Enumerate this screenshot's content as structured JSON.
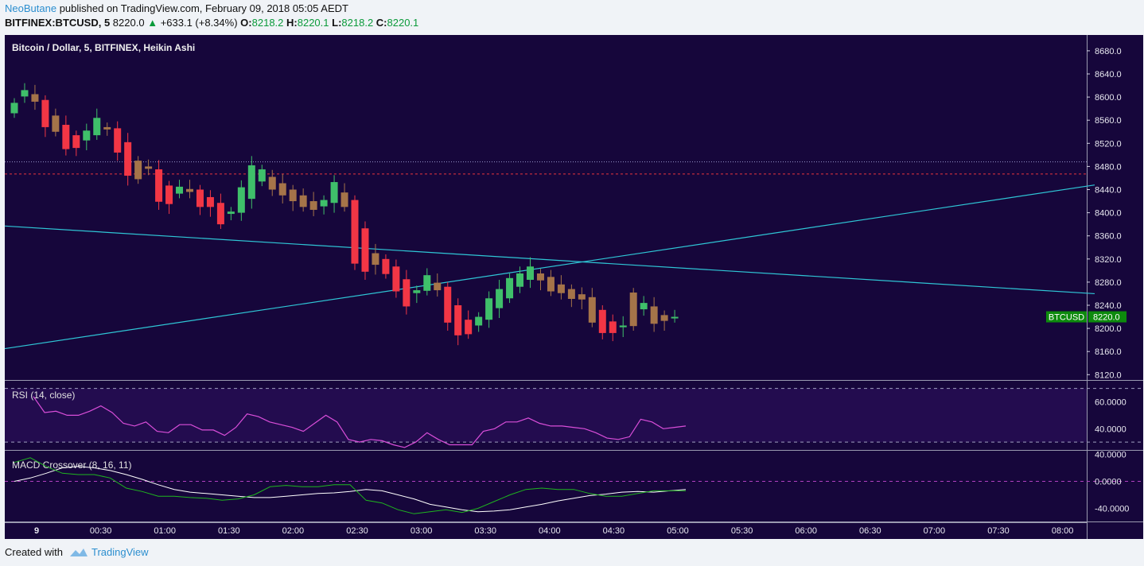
{
  "header": {
    "author": "NeoButane",
    "published": "published on TradingView.com, February 09, 2018 05:05 AEDT",
    "symbol": "BITFINEX:BTCUSD, 5",
    "last": "8220.0",
    "up_arrow": "▲",
    "change": "+633.1 (+8.34%)",
    "o_label": "O:",
    "o_value": "8218.2",
    "h_label": "H:",
    "h_value": "8220.1",
    "l_label": "L:",
    "l_value": "8218.2",
    "c_label": "C:",
    "c_value": "8220.1"
  },
  "footer": {
    "created_with": "Created with",
    "brand": "TradingView"
  },
  "colors": {
    "background": "#16063b",
    "rsi_band": "#230c4f",
    "up": "#3fbf6a",
    "down": "#f23645",
    "neutral": "#a57449",
    "trendline": "#2fc6d6",
    "resistance": "#e8353d",
    "rsi_line": "#d94ed9",
    "macd_line": "#ffffff",
    "signal_line": "#1fb51f",
    "price_tag": "#0d8a0d"
  },
  "chart_data": [
    {
      "type": "candlestick",
      "title": "Bitcoin / Dollar, 5, BITFINEX, Heikin Ashi",
      "ylim": [
        8100,
        8700
      ],
      "yticks": [
        "8680.0",
        "8640.0",
        "8600.0",
        "8560.0",
        "8520.0",
        "8480.0",
        "8440.0",
        "8400.0",
        "8360.0",
        "8320.0",
        "8280.0",
        "8240.0",
        "8200.0",
        "8160.0",
        "8120.0"
      ],
      "xticks": [
        "9",
        "00:30",
        "01:00",
        "01:30",
        "02:00",
        "02:30",
        "03:00",
        "03:30",
        "04:00",
        "04:30",
        "05:00",
        "05:30",
        "06:00",
        "06:30",
        "07:00",
        "07:30",
        "08:00"
      ],
      "price_tag": {
        "label": "BTCUSD",
        "value": "8220.0"
      },
      "horizontal_lines": [
        {
          "value": 8467,
          "style": "dashed",
          "color": "#e8353d"
        },
        {
          "value": 8488,
          "style": "dotted",
          "color": "#9999cc"
        }
      ],
      "trendlines": [
        {
          "from": [
            0,
            8377
          ],
          "to": [
            1370,
            8260
          ]
        },
        {
          "from": [
            0,
            8165
          ],
          "to": [
            1370,
            8448
          ]
        }
      ],
      "candles": [
        [
          8590,
          8625,
          8572,
          8572,
          "up"
        ],
        [
          8601,
          8612,
          8598,
          8612,
          "up"
        ],
        [
          8605,
          8612,
          8590,
          8592,
          "neutral"
        ],
        [
          8595,
          8595,
          8548,
          8548,
          "down"
        ],
        [
          8568,
          8570,
          8540,
          8540,
          "neutral"
        ],
        [
          8552,
          8552,
          8510,
          8510,
          "down"
        ],
        [
          8534,
          8534,
          8512,
          8512,
          "down"
        ],
        [
          8525,
          8542,
          8525,
          8542,
          "up"
        ],
        [
          8534,
          8564,
          8534,
          8564,
          "up"
        ],
        [
          8548,
          8548,
          8544,
          8544,
          "neutral"
        ],
        [
          8546,
          8546,
          8504,
          8504,
          "down"
        ],
        [
          8522,
          8522,
          8464,
          8464,
          "down"
        ],
        [
          8490,
          8494,
          8458,
          8458,
          "neutral"
        ],
        [
          8480,
          8480,
          8476,
          8476,
          "neutral"
        ],
        [
          8475,
          8475,
          8419,
          8419,
          "down"
        ],
        [
          8447,
          8447,
          8415,
          8415,
          "down"
        ],
        [
          8433,
          8445,
          8433,
          8445,
          "up"
        ],
        [
          8441,
          8441,
          8436,
          8436,
          "neutral"
        ],
        [
          8440,
          8440,
          8410,
          8410,
          "down"
        ],
        [
          8427,
          8427,
          8410,
          8410,
          "down"
        ],
        [
          8417,
          8417,
          8380,
          8380,
          "down"
        ],
        [
          8398,
          8402,
          8398,
          8402,
          "up"
        ],
        [
          8400,
          8444,
          8400,
          8444,
          "up"
        ],
        [
          8424,
          8482,
          8424,
          8482,
          "up"
        ],
        [
          8454,
          8475,
          8454,
          8475,
          "up"
        ],
        [
          8462,
          8462,
          8440,
          8440,
          "neutral"
        ],
        [
          8451,
          8451,
          8430,
          8430,
          "neutral"
        ],
        [
          8440,
          8440,
          8420,
          8420,
          "neutral"
        ],
        [
          8430,
          8430,
          8410,
          8410,
          "neutral"
        ],
        [
          8420,
          8420,
          8405,
          8405,
          "neutral"
        ],
        [
          8411,
          8422,
          8411,
          8422,
          "up"
        ],
        [
          8417,
          8453,
          8417,
          8453,
          "up"
        ],
        [
          8435,
          8435,
          8410,
          8410,
          "neutral"
        ],
        [
          8422,
          8422,
          8312,
          8312,
          "down"
        ],
        [
          8373,
          8373,
          8298,
          8298,
          "down"
        ],
        [
          8330,
          8330,
          8310,
          8310,
          "neutral"
        ],
        [
          8320,
          8320,
          8294,
          8294,
          "down"
        ],
        [
          8307,
          8307,
          8264,
          8264,
          "down"
        ],
        [
          8285,
          8285,
          8238,
          8238,
          "down"
        ],
        [
          8261,
          8266,
          8261,
          8266,
          "up"
        ],
        [
          8265,
          8292,
          8265,
          8292,
          "up"
        ],
        [
          8279,
          8279,
          8266,
          8266,
          "neutral"
        ],
        [
          8272,
          8272,
          8210,
          8210,
          "down"
        ],
        [
          8240,
          8240,
          8188,
          8188,
          "down"
        ],
        [
          8215,
          8215,
          8190,
          8190,
          "down"
        ],
        [
          8205,
          8220,
          8205,
          8220,
          "up"
        ],
        [
          8215,
          8252,
          8215,
          8252,
          "up"
        ],
        [
          8235,
          8268,
          8235,
          8268,
          "up"
        ],
        [
          8252,
          8287,
          8252,
          8287,
          "up"
        ],
        [
          8272,
          8295,
          8272,
          8295,
          "up"
        ],
        [
          8284,
          8307,
          8284,
          8307,
          "up"
        ],
        [
          8295,
          8295,
          8283,
          8283,
          "neutral"
        ],
        [
          8289,
          8289,
          8264,
          8264,
          "neutral"
        ],
        [
          8276,
          8276,
          8261,
          8261,
          "neutral"
        ],
        [
          8268,
          8268,
          8251,
          8251,
          "neutral"
        ],
        [
          8259,
          8259,
          8250,
          8250,
          "neutral"
        ],
        [
          8254,
          8254,
          8210,
          8210,
          "neutral"
        ],
        [
          8232,
          8232,
          8192,
          8192,
          "down"
        ],
        [
          8212,
          8212,
          8192,
          8192,
          "down"
        ],
        [
          8202,
          8205,
          8202,
          8205,
          "up"
        ],
        [
          8204,
          8262,
          8204,
          8262,
          "neutral"
        ],
        [
          8233,
          8244,
          8233,
          8244,
          "up"
        ],
        [
          8238,
          8238,
          8208,
          8208,
          "neutral"
        ],
        [
          8223,
          8223,
          8213,
          8213,
          "neutral"
        ],
        [
          8218,
          8220,
          8218,
          8220,
          "up"
        ]
      ]
    },
    {
      "type": "line",
      "title": "RSI (14, close)",
      "ylim": [
        25,
        72
      ],
      "yticks": [
        "60.0000",
        "40.0000"
      ],
      "bands": [
        70,
        30
      ],
      "series": [
        {
          "values": [
            64,
            52,
            53,
            50,
            50,
            53,
            57,
            52,
            44,
            42,
            45,
            38,
            37,
            43,
            43,
            39,
            39,
            35,
            41,
            51,
            49,
            45,
            43,
            41,
            38,
            44,
            50,
            45,
            32,
            30,
            32,
            31,
            28,
            26,
            30,
            37,
            32,
            28,
            28,
            28,
            38,
            40,
            45,
            45,
            48,
            44,
            42,
            42,
            41,
            40,
            37,
            33,
            32,
            34,
            47,
            45,
            40,
            41,
            42
          ]
        }
      ]
    },
    {
      "type": "line",
      "title": "MACD Crossover (8, 16, 11)",
      "ylim": [
        -60,
        45
      ],
      "yticks": [
        "40.0000",
        "0.0000",
        "-40.0000"
      ],
      "series": [
        {
          "color": "#ffffff",
          "values": [
            0,
            5,
            12,
            20,
            22,
            20,
            16,
            10,
            3,
            -5,
            -12,
            -16,
            -18,
            -20,
            -22,
            -24,
            -24,
            -22,
            -20,
            -18,
            -17,
            -15,
            -12,
            -14,
            -20,
            -26,
            -34,
            -38,
            -42,
            -45,
            -44,
            -42,
            -38,
            -34,
            -29,
            -25,
            -21,
            -19,
            -16,
            -15,
            -16,
            -14,
            -12
          ]
        },
        {
          "color": "#1fb51f",
          "values": [
            28,
            35,
            22,
            12,
            10,
            10,
            5,
            -10,
            -15,
            -22,
            -22,
            -24,
            -25,
            -28,
            -26,
            -20,
            -8,
            -6,
            -8,
            -8,
            -5,
            -5,
            -28,
            -32,
            -42,
            -48,
            -45,
            -42,
            -46,
            -40,
            -30,
            -20,
            -12,
            -10,
            -12,
            -12,
            -18,
            -22,
            -22,
            -18,
            -14,
            -14,
            -14
          ]
        }
      ]
    }
  ]
}
